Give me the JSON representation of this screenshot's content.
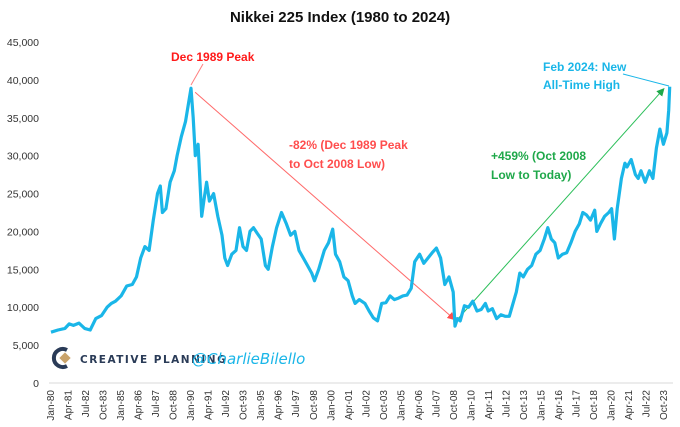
{
  "chart_data": {
    "type": "line",
    "title": "Nikkei 225 Index (1980 to 2024)",
    "xlabel": "",
    "ylabel": "",
    "ylim": [
      0,
      45000
    ],
    "yticks": [
      0,
      5000,
      10000,
      15000,
      20000,
      25000,
      30000,
      35000,
      40000,
      45000
    ],
    "ytick_labels": [
      "0",
      "5,000",
      "10,000",
      "15,000",
      "20,000",
      "25,000",
      "30,000",
      "35,000",
      "40,000",
      "45,000"
    ],
    "xtick_labels": [
      "Jan-80",
      "Apr-81",
      "Jul-82",
      "Oct-83",
      "Jan-85",
      "Apr-86",
      "Jul-87",
      "Oct-88",
      "Jan-90",
      "Apr-91",
      "Jul-92",
      "Oct-93",
      "Jan-95",
      "Apr-96",
      "Jul-97",
      "Oct-98",
      "Jan-00",
      "Apr-01",
      "Jul-02",
      "Oct-03",
      "Jan-05",
      "Apr-06",
      "Jul-07",
      "Oct-08",
      "Jan-10",
      "Apr-11",
      "Jul-12",
      "Oct-13",
      "Jan-15",
      "Apr-16",
      "Jul-17",
      "Oct-18",
      "Jan-20",
      "Apr-21",
      "Jul-22",
      "Oct-23"
    ],
    "x_range": [
      1980.0,
      2024.17
    ],
    "grid": false,
    "legend": "none",
    "series": [
      {
        "name": "Nikkei 225",
        "color": "#1ab6e8",
        "x": [
          1980.0,
          1980.5,
          1981.0,
          1981.3,
          1981.6,
          1982.0,
          1982.4,
          1982.8,
          1983.2,
          1983.6,
          1984.0,
          1984.3,
          1984.6,
          1985.0,
          1985.4,
          1985.8,
          1986.1,
          1986.4,
          1986.7,
          1987.0,
          1987.3,
          1987.6,
          1987.8,
          1987.95,
          1988.2,
          1988.5,
          1988.8,
          1989.0,
          1989.3,
          1989.6,
          1989.99,
          1990.15,
          1990.3,
          1990.5,
          1990.75,
          1990.9,
          1991.1,
          1991.3,
          1991.6,
          1991.9,
          1992.2,
          1992.4,
          1992.6,
          1992.9,
          1993.2,
          1993.45,
          1993.7,
          1993.95,
          1994.2,
          1994.45,
          1994.7,
          1995.0,
          1995.3,
          1995.5,
          1995.8,
          1996.1,
          1996.45,
          1996.8,
          1997.1,
          1997.4,
          1997.7,
          1998.0,
          1998.3,
          1998.6,
          1998.8,
          1999.1,
          1999.5,
          1999.8,
          2000.1,
          2000.3,
          2000.6,
          2000.9,
          2001.2,
          2001.5,
          2001.7,
          2002.0,
          2002.4,
          2002.7,
          2003.0,
          2003.3,
          2003.6,
          2003.9,
          2004.2,
          2004.5,
          2004.8,
          2005.1,
          2005.4,
          2005.7,
          2005.95,
          2006.3,
          2006.6,
          2006.9,
          2007.2,
          2007.5,
          2007.8,
          2008.1,
          2008.4,
          2008.7,
          2008.83,
          2009.0,
          2009.2,
          2009.5,
          2009.8,
          2010.1,
          2010.4,
          2010.7,
          2011.0,
          2011.2,
          2011.5,
          2011.8,
          2012.1,
          2012.4,
          2012.7,
          2012.95,
          2013.2,
          2013.45,
          2013.7,
          2014.0,
          2014.3,
          2014.6,
          2014.9,
          2015.2,
          2015.45,
          2015.7,
          2015.95,
          2016.2,
          2016.5,
          2016.8,
          2017.1,
          2017.4,
          2017.7,
          2017.95,
          2018.2,
          2018.5,
          2018.8,
          2018.95,
          2019.2,
          2019.5,
          2019.8,
          2020.0,
          2020.2,
          2020.4,
          2020.7,
          2020.95,
          2021.1,
          2021.4,
          2021.7,
          2021.9,
          2022.1,
          2022.4,
          2022.7,
          2022.95,
          2023.2,
          2023.45,
          2023.7,
          2023.95,
          2024.08,
          2024.15
        ],
        "y": [
          6700,
          7000,
          7200,
          7800,
          7600,
          7900,
          7200,
          7000,
          8500,
          8900,
          10000,
          10500,
          10800,
          11500,
          12800,
          13000,
          14000,
          16500,
          18000,
          17500,
          21500,
          25000,
          26000,
          22500,
          23000,
          26500,
          28000,
          30000,
          32500,
          34500,
          38900,
          35000,
          30000,
          31500,
          22000,
          24000,
          26500,
          24000,
          25000,
          22000,
          19500,
          16500,
          15500,
          17000,
          17500,
          20500,
          18000,
          17500,
          20000,
          20500,
          19800,
          19000,
          15500,
          15000,
          18000,
          20500,
          22500,
          21000,
          19500,
          20000,
          17500,
          16500,
          15500,
          14500,
          13500,
          15000,
          17500,
          18500,
          20300,
          17000,
          16000,
          14000,
          13500,
          11500,
          10500,
          11000,
          10500,
          9500,
          8600,
          8200,
          10500,
          10600,
          11500,
          11000,
          11200,
          11500,
          11600,
          12500,
          16000,
          17000,
          15800,
          16500,
          17200,
          17800,
          16500,
          13000,
          14000,
          12000,
          7500,
          8500,
          8200,
          10200,
          10000,
          10800,
          9500,
          9700,
          10500,
          9500,
          9800,
          8500,
          9000,
          8800,
          8800,
          10400,
          12000,
          14500,
          14000,
          15000,
          15500,
          17000,
          17500,
          19000,
          20500,
          19000,
          18500,
          16500,
          17000,
          17200,
          18500,
          20000,
          21000,
          22500,
          22200,
          21500,
          22800,
          20000,
          21000,
          22000,
          22500,
          23000,
          19000,
          23000,
          27000,
          29000,
          28500,
          29500,
          27500,
          27000,
          28000,
          26500,
          28000,
          27000,
          31000,
          33500,
          31500,
          33000,
          36000,
          39100
        ]
      }
    ],
    "annotations": [
      {
        "id": "peak",
        "text": "Dec 1989 Peak",
        "color": "#ff1a1a"
      },
      {
        "id": "decline",
        "lines": [
          "-82% (Dec 1989 Peak",
          "to Oct 2008 Low)"
        ],
        "color": "#ff4d4d",
        "arrow_from": [
          1990.0,
          38900
        ],
        "arrow_to": [
          2008.75,
          7800
        ]
      },
      {
        "id": "rise",
        "lines": [
          "+459% (Oct 2008",
          "Low to Today)"
        ],
        "color": "#1fa84a",
        "arrow_from": [
          2009.1,
          7800
        ],
        "arrow_to": [
          2023.9,
          39000
        ]
      },
      {
        "id": "ath",
        "lines": [
          "Feb 2024: New",
          "All-Time High"
        ],
        "color": "#1ab6e8"
      }
    ]
  },
  "branding": {
    "company": "CREATIVE PLANNING",
    "handle": "@CharlieBilello"
  }
}
